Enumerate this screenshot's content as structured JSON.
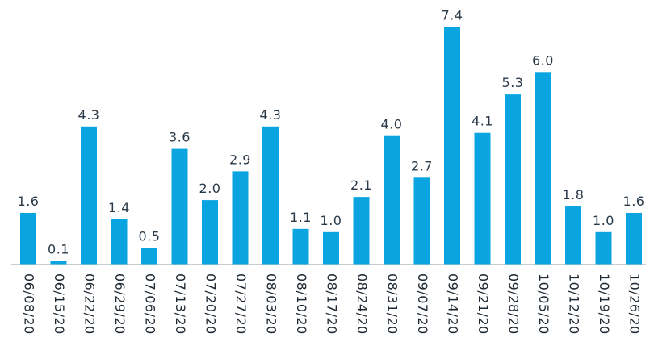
{
  "colors": {
    "bar": "#0aa5e1",
    "axis": "#c7ccd1",
    "text": "#2a3a4a"
  },
  "chart_data": {
    "type": "bar",
    "title": "",
    "xlabel": "",
    "ylabel": "",
    "ylim": [
      0,
      7.6
    ],
    "grid": false,
    "legend": "none",
    "categories": [
      "06/08/20",
      "06/15/20",
      "06/22/20",
      "06/29/20",
      "07/06/20",
      "07/13/20",
      "07/20/20",
      "07/27/20",
      "08/03/20",
      "08/10/20",
      "08/17/20",
      "08/24/20",
      "08/31/20",
      "09/07/20",
      "09/14/20",
      "09/21/20",
      "09/28/20",
      "10/05/20",
      "10/12/20",
      "10/19/20",
      "10/26/20"
    ],
    "values": [
      1.6,
      0.1,
      4.3,
      1.4,
      0.5,
      3.6,
      2.0,
      2.9,
      4.3,
      1.1,
      1.0,
      2.1,
      4.0,
      2.7,
      7.4,
      4.1,
      5.3,
      6.0,
      1.8,
      1.0,
      1.6
    ],
    "value_labels": [
      "1.6",
      "0.1",
      "4.3",
      "1.4",
      "0.5",
      "3.6",
      "2.0",
      "2.9",
      "4.3",
      "1.1",
      "1.0",
      "2.1",
      "4.0",
      "2.7",
      "7.4",
      "4.1",
      "5.3",
      "6.0",
      "1.8",
      "1.0",
      "1.6"
    ]
  }
}
